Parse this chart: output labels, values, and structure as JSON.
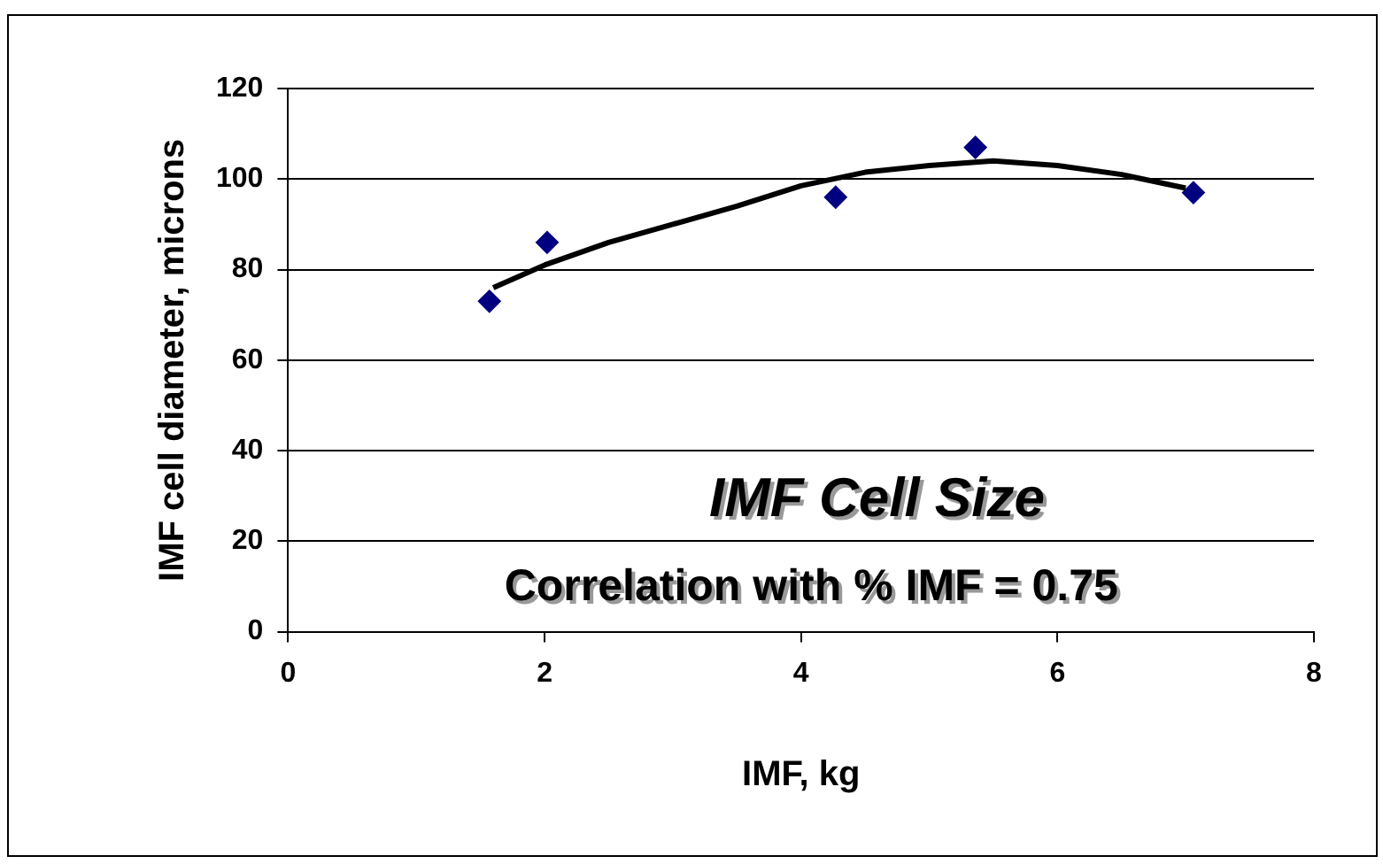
{
  "chart_data": {
    "type": "scatter",
    "xlabel": "IMF, kg",
    "ylabel": "IMF cell diameter, microns",
    "annotations": [
      "IMF Cell Size",
      "Correlation with % IMF = 0.75"
    ],
    "series": [
      {
        "color": "#000080",
        "marker": "diamond",
        "x": [
          1.57,
          2.02,
          4.27,
          5.36,
          7.06
        ],
        "values": [
          73,
          86,
          96,
          107,
          97
        ]
      },
      {
        "type": "line",
        "color": "#000000",
        "marker": "none",
        "x": [
          1.6,
          2,
          2.5,
          3,
          3.5,
          4,
          4.5,
          5,
          5.5,
          6,
          6.5,
          7
        ],
        "values": [
          76,
          81,
          86,
          90,
          94,
          98.5,
          101.5,
          103,
          104,
          103,
          101,
          98
        ]
      }
    ],
    "xlim": [
      0,
      8
    ],
    "xticks": [
      0,
      2,
      4,
      6,
      8
    ],
    "ylim": [
      0,
      120
    ],
    "yticks": [
      0,
      20,
      40,
      60,
      80,
      100,
      120
    ],
    "grid": "y",
    "legend": false
  }
}
